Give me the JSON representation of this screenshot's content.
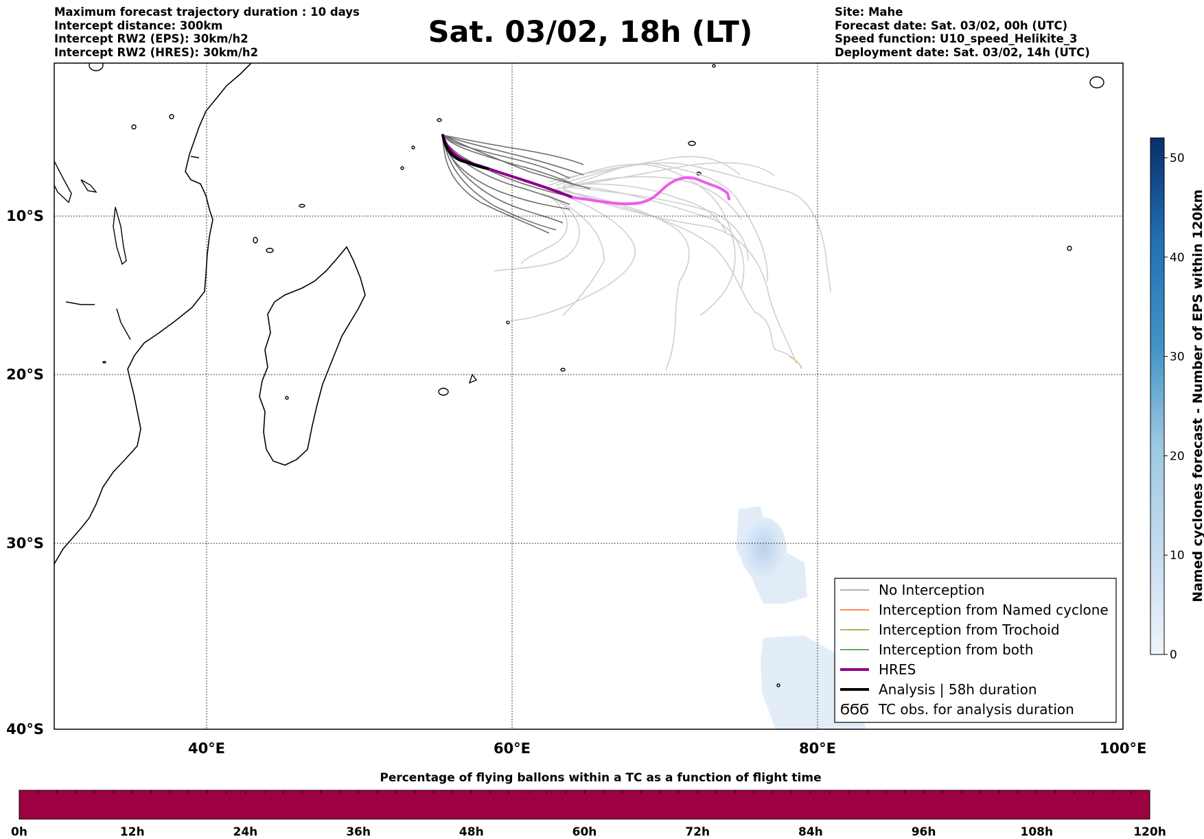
{
  "header_left": [
    "Maximum forecast trajectory duration : 10 days",
    "Intercept distance: 300km",
    "Intercept RW2 (EPS):  30km/h2",
    "Intercept RW2 (HRES): 30km/h2"
  ],
  "title": "Sat. 03/02, 18h (LT)",
  "header_right": [
    "Site: Mahe",
    "Forecast date: Sat. 03/02, 00h (UTC)",
    "Speed function: U10_speed_Helikite_3",
    "Deployment date: Sat. 03/02, 14h (UTC)"
  ],
  "map": {
    "lon_range": [
      30,
      100
    ],
    "lat_range": [
      -40,
      0
    ],
    "lon_ticks": [
      "40°E",
      "60°E",
      "80°E",
      "100°E"
    ],
    "lat_ticks": [
      "10°S",
      "20°S",
      "30°S",
      "40°S"
    ],
    "grid": "dotted"
  },
  "legend": {
    "items": [
      {
        "label": "No Interception",
        "color": "#808080",
        "style": "thin"
      },
      {
        "label": "Interception from Named cyclone",
        "color": "#ff4500",
        "style": "thin"
      },
      {
        "label": "Interception from Trochoid",
        "color": "#808000",
        "style": "thin"
      },
      {
        "label": "Interception from both",
        "color": "#008000",
        "style": "thin"
      },
      {
        "label": "HRES",
        "color": "#8b008b",
        "style": "thick"
      },
      {
        "label": "Analysis | 58h duration",
        "color": "#000000",
        "style": "thick"
      },
      {
        "label": "TC obs. for analysis duration",
        "icon": "cyclone-symbols-icon",
        "glyph": "ϬϬϬ"
      }
    ],
    "placement": "lower-right"
  },
  "colorbar_right": {
    "label": "Named cyclones forecast - Number of EPS within 120km",
    "range": [
      0,
      52
    ],
    "ticks": [
      "0",
      "10",
      "20",
      "30",
      "40",
      "50"
    ],
    "colors": [
      "#eef4fb",
      "#08306b"
    ]
  },
  "colorbar_bottom": {
    "title": "Percentage of flying ballons within a TC as a function of flight time",
    "ticks": [
      "0h",
      "12h",
      "24h",
      "36h",
      "48h",
      "60h",
      "72h",
      "84h",
      "96h",
      "108h",
      "120h"
    ],
    "color": "#9e0142"
  }
}
